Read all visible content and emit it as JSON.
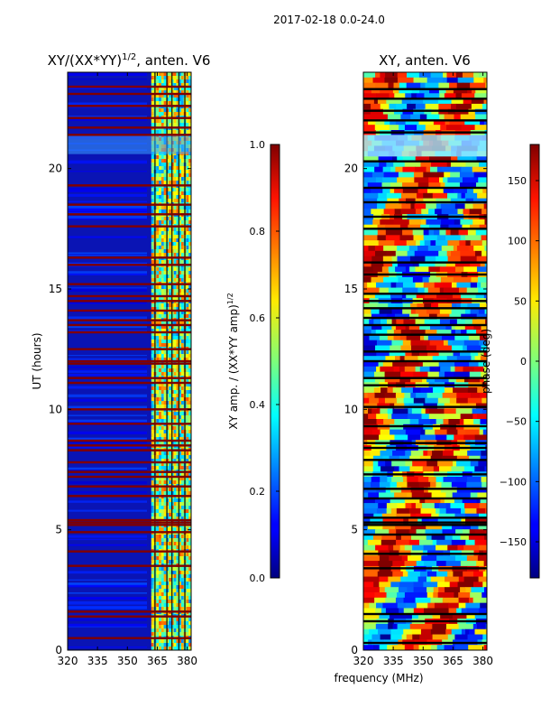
{
  "suptitle": "2017-02-18 0.0-24.0",
  "colors": {
    "flag_red": "#800000",
    "flag_black": "#000000",
    "background": "#ffffff",
    "deep_blue": "#00007f"
  },
  "chart_data": [
    {
      "type": "heatmap",
      "title": "XY/(XX*YY)",
      "title_superscript": "1/2",
      "title_suffix": ", anten. V6",
      "xlabel": "",
      "ylabel": "UT (hours)",
      "xlim": [
        320,
        382
      ],
      "ylim": [
        0,
        24
      ],
      "xticks": [
        320,
        335,
        350,
        365,
        380
      ],
      "yticks": [
        0,
        5,
        10,
        15,
        20
      ],
      "colorbar": {
        "label": "XY amp. / (XX*YY amp)",
        "label_superscript": "1/2",
        "range": [
          0.0,
          1.0
        ],
        "ticks": [
          "0.0",
          "0.2",
          "0.4",
          "0.6",
          "0.8",
          "1.0"
        ]
      },
      "flag_color": "#800000",
      "flagged_ut_hours": [
        0.5,
        1.4,
        1.6,
        3.5,
        4.1,
        4.9,
        5.2,
        5.3,
        5.4,
        6.4,
        6.8,
        7.2,
        7.4,
        7.8,
        8.3,
        8.5,
        8.7,
        9.4,
        10.0,
        11.1,
        11.3,
        11.9,
        12.0,
        12.5,
        13.2,
        13.5,
        13.7,
        14.1,
        14.5,
        14.7,
        15.2,
        16.0,
        16.3,
        17.6,
        18.1,
        18.5,
        19.3,
        21.4,
        21.7,
        22.1,
        22.6,
        23.1,
        23.4
      ]
    },
    {
      "type": "heatmap",
      "title": "XY, anten. V6",
      "xlabel": "frequency (MHz)",
      "ylabel": "",
      "xlim": [
        320,
        382
      ],
      "ylim": [
        0,
        24
      ],
      "xticks": [
        320,
        335,
        350,
        365,
        380
      ],
      "yticks": [
        0,
        5,
        10,
        15,
        20
      ],
      "colorbar": {
        "label": "phase (deg)",
        "range": [
          -180,
          180
        ],
        "ticks": [
          "−150",
          "−100",
          "−50",
          "0",
          "50",
          "100",
          "150"
        ]
      },
      "flag_color": "#000000",
      "flagged_ut_hours": [
        0.3,
        1.2,
        1.5,
        3.4,
        4.0,
        4.8,
        5.2,
        5.3,
        5.5,
        6.3,
        6.7,
        7.3,
        7.9,
        8.4,
        8.6,
        9.3,
        10.1,
        11.0,
        11.3,
        12.0,
        12.4,
        13.1,
        13.5,
        13.8,
        14.2,
        14.5,
        14.8,
        15.6,
        16.1,
        17.5,
        18.0,
        18.6,
        19.2,
        20.3,
        21.5,
        22.0,
        22.4,
        22.9,
        23.3
      ]
    }
  ]
}
